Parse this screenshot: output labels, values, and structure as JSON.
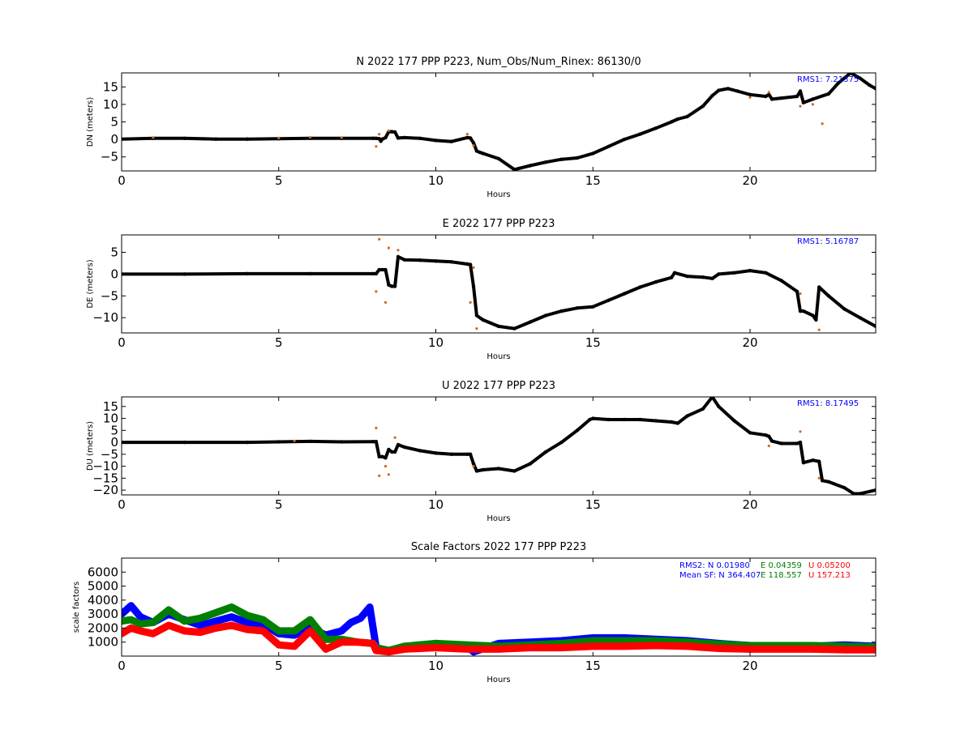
{
  "chart_data": [
    {
      "type": "scatter",
      "title": "N 2022 177 PPP  P223, Num_Obs/Num_Rinex: 86130/0",
      "xlabel": "Hours",
      "ylabel": "DN (meters)",
      "xlim": [
        0,
        24
      ],
      "ylim": [
        -9,
        19
      ],
      "xticks": [
        0,
        5,
        10,
        15,
        20
      ],
      "yticks": [
        -5,
        0,
        5,
        10,
        15
      ],
      "annotation": "RMS1:  7.21375",
      "series": [
        {
          "color": "#000000",
          "x": [
            0,
            1,
            2,
            3,
            4,
            5,
            6,
            7,
            8,
            8.1,
            8.2,
            8.25,
            8.3,
            8.4,
            8.5,
            8.6,
            8.7,
            8.8,
            9,
            9.5,
            10,
            10.5,
            11,
            11.1,
            11.2,
            11.3,
            11.4,
            11.5,
            12,
            12.5,
            13,
            13.5,
            14,
            14.5,
            15,
            15.5,
            16,
            16.5,
            17,
            17.5,
            17.7,
            18,
            18.5,
            18.8,
            19,
            19.3,
            19.6,
            20,
            20.5,
            20.6,
            20.7,
            21,
            21.5,
            21.6,
            21.7,
            22,
            22.5,
            22.8,
            23,
            23.2,
            23.5,
            23.8,
            24
          ],
          "y": [
            0.1,
            0.3,
            0.3,
            0.1,
            0.1,
            0.2,
            0.3,
            0.3,
            0.3,
            0.3,
            0.2,
            -0.5,
            0.1,
            0.5,
            2.2,
            2.2,
            2.1,
            0.4,
            0.5,
            0.3,
            -0.3,
            -0.6,
            0.5,
            0.4,
            -1.0,
            -3.3,
            -3.7,
            -4.0,
            -5.5,
            -8.6,
            -7.5,
            -6.5,
            -5.7,
            -5.3,
            -4.0,
            -2.0,
            0.0,
            1.5,
            3.2,
            5.0,
            5.8,
            6.5,
            9.5,
            12.5,
            14.0,
            14.5,
            13.8,
            12.8,
            12.3,
            12.8,
            11.5,
            11.8,
            12.3,
            13.8,
            10.5,
            11.5,
            13.0,
            16.0,
            17.5,
            19.0,
            17.5,
            15.5,
            14.5
          ]
        },
        {
          "color": "#d2691e",
          "x": [
            8.1,
            8.2,
            8.5,
            11.0,
            11.2,
            20.6,
            21.6,
            22.3,
            20.0,
            1.0,
            5.0,
            7.0,
            6.0,
            22.0
          ],
          "y": [
            -2.0,
            1.5,
            2.5,
            1.5,
            -1.8,
            13.5,
            9.5,
            4.5,
            12.0,
            0.5,
            0.4,
            0.5,
            0.6,
            10.0
          ]
        }
      ]
    },
    {
      "type": "scatter",
      "title": "E 2022 177 PPP  P223",
      "xlabel": "Hours",
      "ylabel": "DE (meters)",
      "xlim": [
        0,
        24
      ],
      "ylim": [
        -13.5,
        9
      ],
      "xticks": [
        0,
        5,
        10,
        15,
        20
      ],
      "yticks": [
        -10,
        -5,
        0,
        5
      ],
      "annotation": "RMS1:  5.16787",
      "series": [
        {
          "color": "#000000",
          "x": [
            0,
            2,
            4,
            6,
            8,
            8.1,
            8.2,
            8.3,
            8.4,
            8.5,
            8.6,
            8.7,
            8.8,
            9,
            9.5,
            10,
            10.5,
            11,
            11.1,
            11.2,
            11.3,
            11.5,
            12,
            12.5,
            13,
            13.5,
            14,
            14.5,
            15,
            15.5,
            16,
            16.5,
            17,
            17.5,
            17.6,
            18,
            18.5,
            18.8,
            19,
            19.5,
            20,
            20.5,
            21,
            21.5,
            21.6,
            21.7,
            22,
            22.1,
            22.2,
            22.5,
            23,
            23.5,
            24
          ],
          "y": [
            0.0,
            0.0,
            0.1,
            0.1,
            0.1,
            0.1,
            1.0,
            1.0,
            1.0,
            -2.5,
            -2.8,
            -2.8,
            4.0,
            3.3,
            3.2,
            3.0,
            2.8,
            2.3,
            2.2,
            -2.8,
            -9.5,
            -10.5,
            -12.0,
            -12.5,
            -11.0,
            -9.5,
            -8.5,
            -7.8,
            -7.5,
            -6.0,
            -4.5,
            -3.0,
            -1.8,
            -0.8,
            0.3,
            -0.5,
            -0.7,
            -1.0,
            0.0,
            0.3,
            0.8,
            0.3,
            -1.5,
            -4.0,
            -8.5,
            -8.5,
            -9.5,
            -10.5,
            -3.0,
            -5.0,
            -8.0,
            -10.0,
            -12.0
          ]
        },
        {
          "color": "#d2691e",
          "x": [
            8.2,
            8.4,
            8.5,
            8.8,
            11.1,
            11.3,
            21.6,
            22.2,
            8.1,
            11.2
          ],
          "y": [
            8.0,
            -6.5,
            6.0,
            5.5,
            -6.5,
            -12.5,
            -4.5,
            -12.8,
            -4.0,
            1.5
          ]
        }
      ]
    },
    {
      "type": "scatter",
      "title": "U 2022 177 PPP  P223",
      "xlabel": "Hours",
      "ylabel": "DU (meters)",
      "xlim": [
        0,
        24
      ],
      "ylim": [
        -22,
        19
      ],
      "xticks": [
        0,
        5,
        10,
        15,
        20
      ],
      "yticks": [
        -20,
        -15,
        -10,
        -5,
        0,
        5,
        10,
        15
      ],
      "annotation": "RMS1:  8.17495",
      "series": [
        {
          "color": "#000000",
          "x": [
            0,
            2,
            4,
            5,
            6,
            7,
            8,
            8.1,
            8.2,
            8.3,
            8.4,
            8.5,
            8.6,
            8.7,
            8.8,
            9,
            9.5,
            10,
            10.5,
            11,
            11.1,
            11.2,
            11.3,
            11.5,
            12,
            12.5,
            13,
            13.5,
            14,
            14.5,
            14.9,
            15,
            15.5,
            16,
            16.5,
            17,
            17.5,
            17.7,
            18,
            18.5,
            18.8,
            19,
            19.5,
            20,
            20.5,
            20.6,
            20.7,
            21,
            21.5,
            21.6,
            21.7,
            22,
            22.2,
            22.3,
            22.5,
            23,
            23.3,
            23.5,
            24
          ],
          "y": [
            0.0,
            0.0,
            0.0,
            0.2,
            0.4,
            0.2,
            0.3,
            0.3,
            -6.0,
            -6.0,
            -6.5,
            -3.0,
            -4.0,
            -4.0,
            -1.0,
            -2.0,
            -3.5,
            -4.5,
            -5.0,
            -5.0,
            -5.0,
            -9.0,
            -12.0,
            -11.5,
            -11.0,
            -12.0,
            -9.0,
            -4.0,
            0.0,
            5.0,
            9.5,
            10.0,
            9.5,
            9.5,
            9.5,
            9.0,
            8.5,
            8.0,
            11.0,
            14.0,
            19.0,
            15.0,
            9.0,
            4.0,
            3.0,
            2.5,
            0.5,
            -0.5,
            -0.5,
            0.0,
            -8.5,
            -7.5,
            -8.0,
            -16.0,
            -16.5,
            -19.0,
            -21.5,
            -21.5,
            -20.0
          ]
        },
        {
          "color": "#d2691e",
          "x": [
            8.1,
            8.2,
            8.5,
            8.7,
            11.2,
            21.6,
            20.6,
            22.2,
            8.4,
            5.5
          ],
          "y": [
            6.0,
            -14.0,
            -13.5,
            2.0,
            -10.0,
            4.5,
            -1.5,
            -15.0,
            -10.0,
            0.6
          ]
        }
      ]
    },
    {
      "type": "scatter",
      "title": "Scale Factors 2022 177 PPP  P223",
      "xlabel": "Hours",
      "ylabel": "scale factors",
      "xlim": [
        0,
        24
      ],
      "ylim": [
        0,
        7000
      ],
      "xticks": [
        0,
        5,
        10,
        15,
        20
      ],
      "yticks": [
        1000,
        2000,
        3000,
        4000,
        5000,
        6000
      ],
      "annotations": [
        {
          "text": "RMS2: N  0.01980",
          "color": "#0000ff"
        },
        {
          "text": "E  0.04359",
          "color": "#008000"
        },
        {
          "text": "U  0.05200",
          "color": "#ff0000"
        },
        {
          "text": "Mean SF: N 364.407",
          "color": "#0000ff"
        },
        {
          "text": "E 118.557",
          "color": "#008000"
        },
        {
          "text": "U 157.213",
          "color": "#ff0000"
        }
      ],
      "series": [
        {
          "name": "N",
          "color": "#0000ff",
          "x": [
            0,
            0.3,
            0.6,
            1,
            1.5,
            2,
            2.5,
            3,
            3.5,
            4,
            4.5,
            5,
            5.5,
            6,
            6.5,
            7,
            7.3,
            7.6,
            7.9,
            8.1,
            8.5,
            9,
            10,
            11,
            11.2,
            12,
            13,
            14,
            15,
            16,
            17,
            18,
            19,
            20,
            21,
            22,
            23,
            24
          ],
          "y": [
            3000,
            3600,
            2800,
            2400,
            3000,
            2600,
            2200,
            2500,
            2800,
            2400,
            2300,
            1600,
            1500,
            2000,
            1500,
            1800,
            2400,
            2700,
            3500,
            600,
            400,
            600,
            900,
            700,
            300,
            900,
            1000,
            1100,
            1300,
            1300,
            1200,
            1100,
            900,
            750,
            700,
            700,
            800,
            700
          ]
        },
        {
          "name": "E",
          "color": "#008000",
          "x": [
            0,
            0.3,
            0.6,
            1,
            1.5,
            2,
            2.5,
            3,
            3.5,
            4,
            4.5,
            5,
            5.5,
            6,
            6.5,
            7,
            7.5,
            8,
            8.1,
            8.5,
            9,
            10,
            11,
            12,
            13,
            14,
            15,
            16,
            17,
            18,
            19,
            20,
            21,
            22,
            23,
            24
          ],
          "y": [
            2500,
            2600,
            2300,
            2400,
            3300,
            2500,
            2700,
            3100,
            3500,
            2900,
            2600,
            1800,
            1800,
            2600,
            1200,
            1200,
            1000,
            900,
            600,
            400,
            700,
            900,
            800,
            700,
            800,
            900,
            1100,
            1100,
            1100,
            1000,
            850,
            750,
            750,
            750,
            700,
            650
          ]
        },
        {
          "name": "U",
          "color": "#ff0000",
          "x": [
            0,
            0.3,
            0.6,
            1,
            1.5,
            2,
            2.5,
            3,
            3.5,
            4,
            4.5,
            5,
            5.5,
            6,
            6.5,
            7,
            7.5,
            8,
            8.1,
            8.5,
            9,
            10,
            11,
            12,
            13,
            14,
            15,
            16,
            17,
            18,
            19,
            20,
            21,
            22,
            23,
            24
          ],
          "y": [
            1600,
            2000,
            1800,
            1600,
            2200,
            1800,
            1700,
            2000,
            2200,
            1900,
            1800,
            800,
            700,
            1800,
            500,
            1000,
            1000,
            900,
            400,
            300,
            500,
            600,
            500,
            500,
            600,
            600,
            700,
            700,
            750,
            700,
            550,
            500,
            500,
            500,
            450,
            450
          ]
        }
      ]
    }
  ]
}
